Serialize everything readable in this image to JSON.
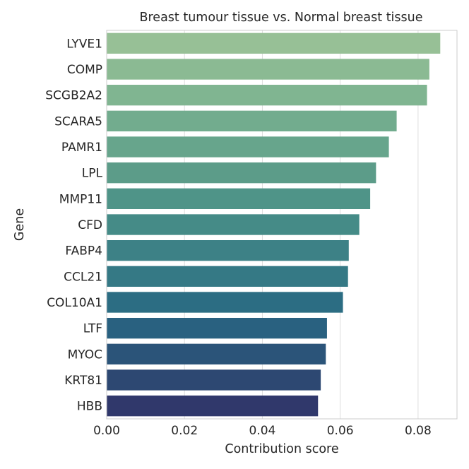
{
  "chart_data": {
    "type": "bar",
    "orientation": "horizontal",
    "title": "Breast tumour tissue vs. Normal breast tissue",
    "xlabel": "Contribution score",
    "ylabel": "Gene",
    "xlim": [
      0,
      0.09
    ],
    "xticks": [
      0.0,
      0.02,
      0.04,
      0.06,
      0.08
    ],
    "xtick_labels": [
      "0.00",
      "0.02",
      "0.04",
      "0.06",
      "0.08"
    ],
    "grid": "vertical",
    "categories": [
      "LYVE1",
      "COMP",
      "SCGB2A2",
      "SCARA5",
      "PAMR1",
      "LPL",
      "MMP11",
      "CFD",
      "FABP4",
      "CCL21",
      "COL10A1",
      "LTF",
      "MYOC",
      "KRT81",
      "HBB"
    ],
    "values": [
      0.0857,
      0.0829,
      0.0823,
      0.0745,
      0.0725,
      0.0692,
      0.0677,
      0.0649,
      0.0622,
      0.062,
      0.0607,
      0.0566,
      0.0563,
      0.055,
      0.0543
    ],
    "colors": [
      "#97c096",
      "#8bba93",
      "#80b591",
      "#72ac8e",
      "#67a58c",
      "#5c9c89",
      "#4f9488",
      "#458b87",
      "#3d8186",
      "#357985",
      "#2c6d83",
      "#296180",
      "#2b5479",
      "#2d4872",
      "#30386b"
    ]
  }
}
